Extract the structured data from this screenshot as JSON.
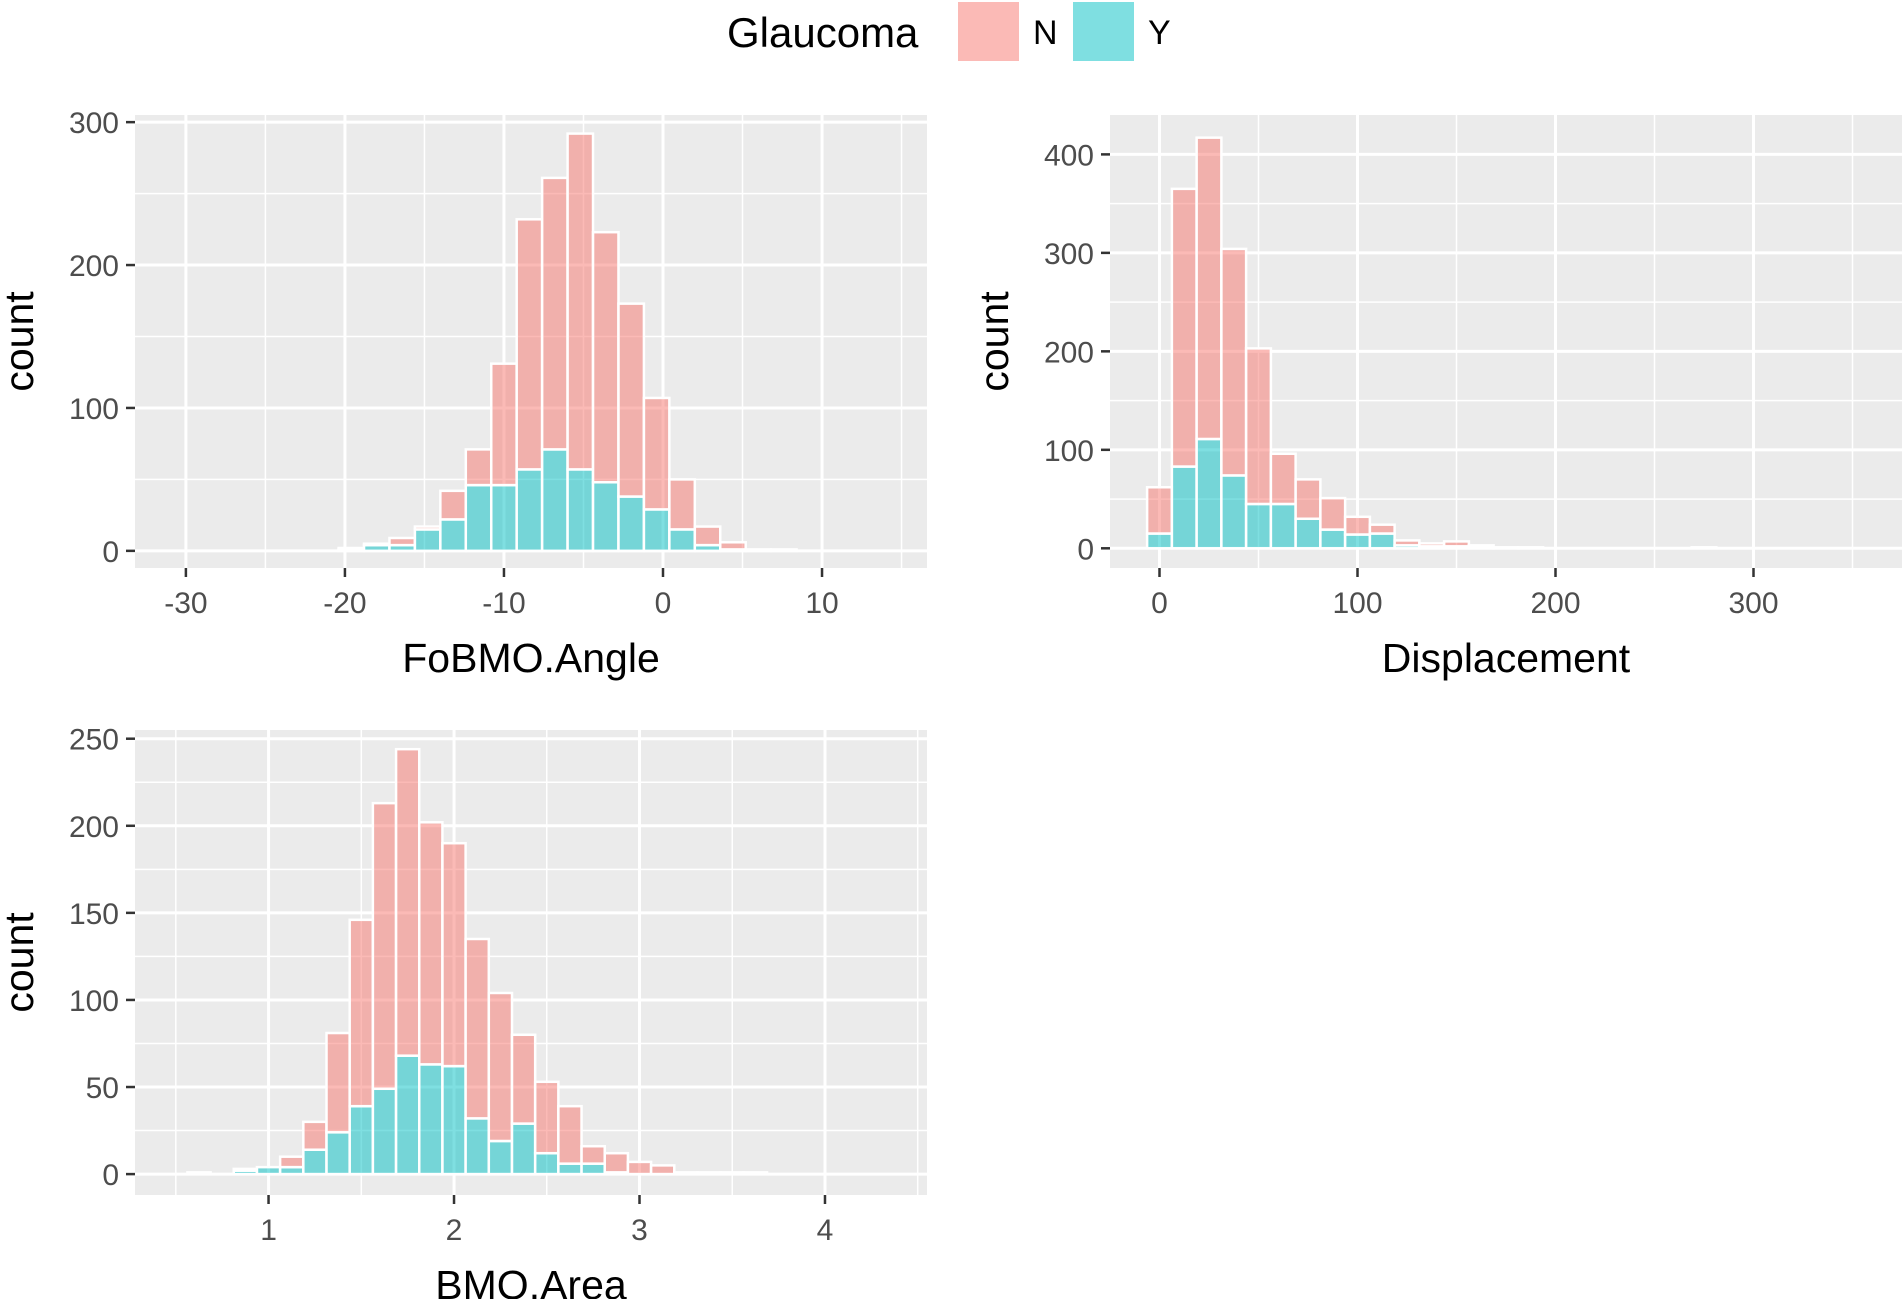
{
  "legend": {
    "title": "Glaucoma",
    "items": [
      {
        "label": "N",
        "color": "#F8766D"
      },
      {
        "label": "Y",
        "color": "#00BFC4"
      }
    ]
  },
  "colors": {
    "N": "#F8766D",
    "Y": "#00BFC4",
    "panel": "#EBEBEB",
    "grid": "#FFFFFF"
  },
  "chart_data": [
    {
      "type": "bar",
      "stacked": true,
      "xlabel": "FoBMO.Angle",
      "ylabel": "count",
      "xlim": [
        -33.2,
        16.6
      ],
      "ylim": [
        -12,
        305
      ],
      "xticks": [
        -30,
        -20,
        -10,
        0,
        10
      ],
      "yticks": [
        0,
        100,
        200,
        300
      ],
      "bin_width": 1.6,
      "bin_starts": [
        -33.2,
        -31.6,
        -30,
        -28.4,
        -26.8,
        -25.2,
        -23.6,
        -22,
        -20.4,
        -18.8,
        -17.2,
        -15.6,
        -14,
        -12.4,
        -10.8,
        -9.2,
        -7.6,
        -6,
        -4.4,
        -2.8,
        -1.2,
        0.4,
        2,
        3.6,
        5.2,
        6.8,
        8.4,
        10,
        11.6,
        13.2
      ],
      "series": [
        {
          "name": "N",
          "values": [
            0,
            0,
            0,
            0,
            0,
            0,
            0,
            0,
            1,
            1,
            5,
            2,
            20,
            25,
            85,
            175,
            190,
            235,
            175,
            135,
            78,
            35,
            13,
            5,
            1,
            1,
            0,
            0,
            0,
            0
          ]
        },
        {
          "name": "Y",
          "values": [
            0,
            0,
            0,
            0,
            0,
            0,
            0,
            0,
            1,
            4,
            4,
            15,
            22,
            46,
            46,
            57,
            71,
            57,
            48,
            38,
            29,
            15,
            4,
            1,
            0,
            0,
            0,
            0,
            0,
            0
          ]
        }
      ]
    },
    {
      "type": "bar",
      "stacked": true,
      "xlabel": "Displacement",
      "ylabel": "count",
      "xlim": [
        -25,
        375
      ],
      "ylim": [
        -20,
        440
      ],
      "xticks": [
        0,
        100,
        200,
        300
      ],
      "yticks": [
        0,
        100,
        200,
        300,
        400
      ],
      "bin_width": 12.5,
      "bin_starts": [
        -6.25,
        6.25,
        18.75,
        31.25,
        43.75,
        56.25,
        68.75,
        81.25,
        93.75,
        106.25,
        118.75,
        131.25,
        143.75,
        156.25,
        168.75,
        181.25,
        193.75,
        206.25,
        218.75,
        231.25,
        243.75,
        256.25,
        268.75,
        281.25,
        293.75,
        306.25,
        318.75,
        331.25,
        343.75,
        356.25
      ],
      "series": [
        {
          "name": "N",
          "values": [
            47,
            282,
            306,
            230,
            158,
            51,
            40,
            32,
            18,
            9,
            5,
            3,
            5,
            2,
            1,
            1,
            0,
            0,
            0,
            0,
            0,
            0,
            1,
            0,
            0,
            0,
            0,
            0,
            0,
            0
          ]
        },
        {
          "name": "Y",
          "values": [
            15,
            83,
            111,
            74,
            45,
            45,
            30,
            19,
            14,
            15,
            3,
            2,
            2,
            1,
            0,
            0,
            0,
            0,
            0,
            0,
            0,
            0,
            0,
            0,
            0,
            0,
            0,
            0,
            0,
            0
          ]
        }
      ]
    },
    {
      "type": "bar",
      "stacked": true,
      "xlabel": "BMO.Area",
      "ylabel": "count",
      "xlim": [
        0.28,
        4.55
      ],
      "ylim": [
        -12,
        255
      ],
      "xticks": [
        1,
        2,
        3,
        4
      ],
      "yticks": [
        0,
        50,
        100,
        150,
        200,
        250
      ],
      "bin_width": 0.125,
      "bin_starts": [
        0.5625,
        0.6875,
        0.8125,
        0.9375,
        1.0625,
        1.1875,
        1.3125,
        1.4375,
        1.5625,
        1.6875,
        1.8125,
        1.9375,
        2.0625,
        2.1875,
        2.3125,
        2.4375,
        2.5625,
        2.6875,
        2.8125,
        2.9375,
        3.0625,
        3.1875,
        3.3125,
        3.4375,
        3.5625,
        3.6875,
        3.8125,
        3.9375,
        4.0625,
        4.1875
      ],
      "series": [
        {
          "name": "N",
          "values": [
            0,
            0,
            1,
            0,
            6,
            16,
            57,
            107,
            164,
            176,
            139,
            128,
            103,
            85,
            51,
            41,
            33,
            10,
            11,
            7,
            5,
            1,
            1,
            1,
            1,
            0,
            0,
            0,
            0,
            0
          ]
        },
        {
          "name": "Y",
          "values": [
            1,
            0,
            2,
            4,
            4,
            14,
            24,
            39,
            49,
            68,
            63,
            62,
            32,
            19,
            29,
            12,
            6,
            6,
            1,
            0,
            0,
            0,
            0,
            0,
            0,
            0,
            0,
            0,
            0,
            0
          ]
        }
      ]
    }
  ]
}
